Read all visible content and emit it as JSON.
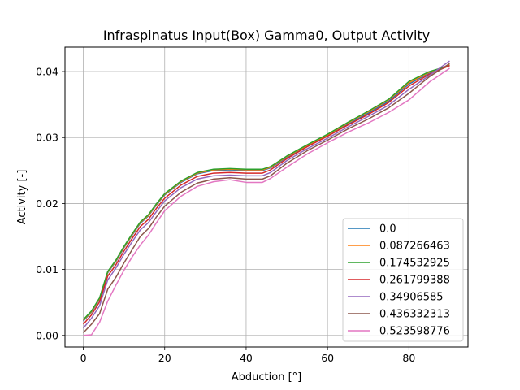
{
  "chart_data": {
    "type": "line",
    "title": "Infraspinatus Input(Box) Gamma0, Output Activity",
    "xlabel": "Abduction [°]",
    "ylabel": "Activity [-]",
    "xlim": [
      -4.5,
      94.5
    ],
    "ylim": [
      -0.00175,
      0.0437
    ],
    "xticks": [
      0,
      20,
      40,
      60,
      80
    ],
    "xtick_labels": [
      "0",
      "20",
      "40",
      "60",
      "80"
    ],
    "yticks": [
      0.0,
      0.01,
      0.02,
      0.03,
      0.04
    ],
    "ytick_labels": [
      "0.00",
      "0.01",
      "0.02",
      "0.03",
      "0.04"
    ],
    "grid": true,
    "legend_position": "lower-right",
    "x": [
      0,
      2,
      4,
      6,
      8,
      10,
      12,
      14,
      16,
      18,
      20,
      24,
      28,
      32,
      36,
      40,
      44,
      46,
      50,
      55,
      60,
      65,
      70,
      75,
      80,
      85,
      90
    ],
    "series": [
      {
        "name": "0.0",
        "color": "#1f77b4",
        "values": [
          0.0022,
          0.0035,
          0.0055,
          0.0095,
          0.0112,
          0.0133,
          0.0152,
          0.017,
          0.0181,
          0.0198,
          0.0213,
          0.0232,
          0.0245,
          0.025,
          0.0251,
          0.025,
          0.025,
          0.0254,
          0.027,
          0.0287,
          0.0303,
          0.032,
          0.0337,
          0.0355,
          0.0381,
          0.0398,
          0.041
        ]
      },
      {
        "name": "0.087266463",
        "color": "#ff7f0e",
        "values": [
          0.0023,
          0.0036,
          0.0056,
          0.0096,
          0.0113,
          0.0134,
          0.0153,
          0.0171,
          0.0182,
          0.0199,
          0.0214,
          0.0233,
          0.0246,
          0.0251,
          0.0252,
          0.0251,
          0.0251,
          0.0255,
          0.0271,
          0.0288,
          0.0304,
          0.0322,
          0.0339,
          0.0357,
          0.0383,
          0.0399,
          0.041
        ]
      },
      {
        "name": "0.174532925",
        "color": "#2ca02c",
        "values": [
          0.0024,
          0.0037,
          0.0057,
          0.0097,
          0.0114,
          0.0135,
          0.0154,
          0.0172,
          0.0183,
          0.02,
          0.0215,
          0.0234,
          0.0247,
          0.0252,
          0.0253,
          0.0252,
          0.0252,
          0.0256,
          0.0272,
          0.0289,
          0.0305,
          0.0323,
          0.034,
          0.0358,
          0.0385,
          0.04,
          0.0409
        ]
      },
      {
        "name": "0.261799388",
        "color": "#d62728",
        "values": [
          0.0017,
          0.0031,
          0.0051,
          0.009,
          0.0107,
          0.0128,
          0.0147,
          0.0165,
          0.0176,
          0.0193,
          0.0208,
          0.0228,
          0.0241,
          0.0246,
          0.0247,
          0.0246,
          0.0246,
          0.0251,
          0.0268,
          0.0286,
          0.0302,
          0.0319,
          0.0335,
          0.0353,
          0.0378,
          0.0396,
          0.0409
        ]
      },
      {
        "name": "0.34906585",
        "color": "#9467bd",
        "values": [
          0.0011,
          0.0026,
          0.0045,
          0.0084,
          0.0102,
          0.0123,
          0.0142,
          0.016,
          0.0171,
          0.0188,
          0.0204,
          0.0224,
          0.0237,
          0.0242,
          0.0243,
          0.0242,
          0.0242,
          0.0247,
          0.0265,
          0.0283,
          0.0299,
          0.0316,
          0.0332,
          0.0349,
          0.0373,
          0.0394,
          0.0416
        ]
      },
      {
        "name": "0.436332313",
        "color": "#8c564b",
        "values": [
          0.0004,
          0.0017,
          0.0033,
          0.007,
          0.0088,
          0.011,
          0.013,
          0.015,
          0.0162,
          0.018,
          0.0196,
          0.0217,
          0.0231,
          0.0237,
          0.0239,
          0.0237,
          0.0237,
          0.0242,
          0.0261,
          0.028,
          0.0296,
          0.0313,
          0.0328,
          0.0345,
          0.0367,
          0.0392,
          0.0412
        ]
      },
      {
        "name": "0.523598776",
        "color": "#e377c2",
        "values": [
          0.0,
          0.0001,
          0.002,
          0.0052,
          0.0076,
          0.0099,
          0.0119,
          0.0137,
          0.0152,
          0.0171,
          0.0189,
          0.0211,
          0.0226,
          0.0233,
          0.0236,
          0.0232,
          0.0232,
          0.0238,
          0.0255,
          0.0275,
          0.0292,
          0.0308,
          0.0322,
          0.0338,
          0.0357,
          0.0384,
          0.0405
        ]
      }
    ]
  }
}
